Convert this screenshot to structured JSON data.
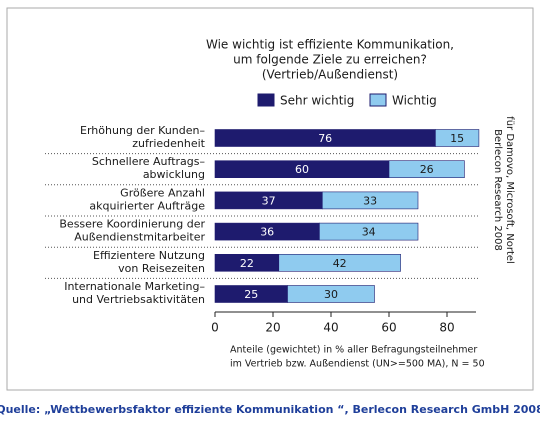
{
  "chart_data": {
    "type": "stacked_barh",
    "title": [
      "Wie wichtig ist effiziente Kommunikation,",
      "um folgende Ziele zu erreichen?",
      "(Vertrieb/Außendienst)"
    ],
    "categories": [
      [
        "Erhöhung der Kunden–",
        "zufriedenheit"
      ],
      [
        "Schnellere Auftrags–",
        "abwicklung"
      ],
      [
        "Größere Anzahl",
        "akquirierter Aufträge"
      ],
      [
        "Bessere Koordinierung der",
        "Außendienstmitarbeiter"
      ],
      [
        "Effizientere Nutzung",
        "von Reisezeiten"
      ],
      [
        "Internationale Marketing–",
        "und Vertriebsaktivitäten"
      ]
    ],
    "series": [
      {
        "name": "Sehr wichtig",
        "color": "#1e1b6e",
        "values": [
          76,
          60,
          37,
          36,
          22,
          25
        ]
      },
      {
        "name": "Wichtig",
        "color": "#8fcbef",
        "values": [
          15,
          26,
          33,
          34,
          42,
          30
        ]
      }
    ],
    "xlim": [
      0,
      90
    ],
    "xticks": [
      0,
      20,
      40,
      60,
      80
    ],
    "x_label": [
      "Anteile (gewichtet) in % aller Befragungsteilnehmer",
      "im Vertrieb bzw. Außendienst (UN>=500 MA), N = 50"
    ],
    "side_note": [
      "Berlecon Research 2008",
      "für Damovo, Microsoft, Nortel"
    ],
    "source": "Quelle: „Wettbewerbsfaktor effiziente Kommunikation “, Berlecon Research GmbH 2008"
  }
}
